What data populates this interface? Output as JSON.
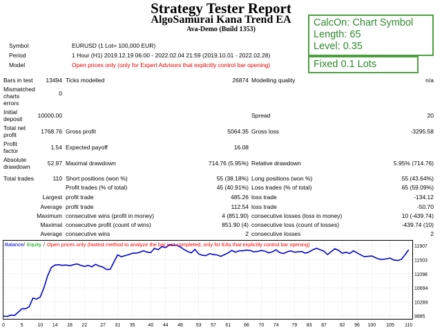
{
  "header": {
    "title": "Strategy Tester Report",
    "ea_name": "AlgoSamurai Kana Trend EA",
    "build": "Ava-Demo (Build 1353)"
  },
  "settings_box": {
    "calc_on": "CalcOn: Chart Symbol",
    "length": "Length: 65",
    "level": "Level: 0.35"
  },
  "lots_box": {
    "label": "Fixed 0.1 Lots"
  },
  "info": {
    "symbol_label": "Symbol",
    "symbol_value": "EURUSD (1 Lot= 100,000 EUR)",
    "period_label": "Period",
    "period_value": "1 Hour (H1) 2019.12.19 06:00 - 2022.02.04 21:59 (2019.10.01 - 2022.02.28)",
    "model_label": "Model",
    "model_value": "Open prices only (only for Expert Advisors that explicitly control bar opening)"
  },
  "stats": {
    "bars_label": "Bars in test",
    "bars_value": "13494",
    "ticks_label": "Ticks modelled",
    "ticks_value": "26874",
    "quality_label": "Modelling quality",
    "quality_value": "n/a",
    "mismatch_label_1": "Mismatched",
    "mismatch_label_2": "charts",
    "mismatch_label_3": "errors",
    "mismatch_value": "0",
    "deposit_label_1": "Initial",
    "deposit_label_2": "deposit",
    "deposit_value": "10000.00",
    "spread_label": "Spread",
    "spread_value": "20",
    "netprofit_label_1": "Total net",
    "netprofit_label_2": "profit",
    "netprofit_value": "1768.76",
    "grossprofit_label": "Gross profit",
    "grossprofit_value": "5064.35",
    "grossloss_label": "Gross loss",
    "grossloss_value": "-3295.58",
    "pf_label_1": "Profit",
    "pf_label_2": "factor",
    "pf_value": "1.54",
    "payoff_label": "Expected payoff",
    "payoff_value": "16.08",
    "absdd_label_1": "Absolute",
    "absdd_label_2": "drawdown",
    "absdd_value": "52.97",
    "maxdd_label": "Maximal drawdown",
    "maxdd_value": "714.76 (5.95%)",
    "reldd_label": "Relative drawdown",
    "reldd_value": "5.95% (714.76)",
    "trades_label": "Total trades",
    "trades_value": "110",
    "short_label": "Short positions (won %)",
    "short_value": "55 (38.18%)",
    "long_label": "Long positions (won %)",
    "long_value": "55 (43.64%)",
    "profit_trades_label": "Profit trades (% of total)",
    "profit_trades_value": "45 (40.91%)",
    "loss_trades_label": "Loss trades (% of total)",
    "loss_trades_value": "65 (59.09%)",
    "largest_label": "Largest",
    "largest_profit_label": "profit trade",
    "largest_profit_value": "485.26",
    "largest_loss_label": "loss trade",
    "largest_loss_value": "-134.12",
    "average_label": "Average",
    "average_profit_label": "profit trade",
    "average_profit_value": "112.54",
    "average_loss_label": "loss trade",
    "average_loss_value": "-50.70",
    "maximum_label": "Maximum",
    "max_wins_label": "consecutive wins (profit in money)",
    "max_wins_value": "4 (851.90)",
    "max_losses_label": "consecutive losses (loss in money)",
    "max_losses_value": "10 (-439.74)",
    "maximal_label": "Maximal",
    "maximal_profit_label": "consecutive profit (count of wins)",
    "maximal_profit_value": "851.90 (4)",
    "maximal_loss_label": "consecutive loss (count of losses)",
    "maximal_loss_value": "-439.74 (10)",
    "avg_label": "Average",
    "avg_wins_label": "consecutive wins",
    "avg_wins_value": "2",
    "avg_losses_label": "consecutive losses",
    "avg_losses_value": "2"
  },
  "chart_data": {
    "type": "line",
    "legend": {
      "balance": "Balance",
      "equity": "Equity",
      "note": "Open prices only (fastest method to analyze the bar just completed, only for EAs that explicitly control bar opening)"
    },
    "colors": {
      "balance": "#0000cc",
      "equity": "#00a000",
      "note": "#ff0000",
      "grid": "#c8c8c8"
    },
    "y_ticks": [
      9885,
      10289,
      10694,
      11098,
      11503,
      11907
    ],
    "x_ticks": [
      0,
      5,
      10,
      14,
      18,
      22,
      27,
      31,
      35,
      40,
      44,
      48,
      53,
      57,
      61,
      66,
      70,
      74,
      79,
      83,
      87,
      92,
      96,
      100,
      105,
      110
    ],
    "x_range": [
      0,
      111
    ],
    "y_range": [
      9800,
      12050
    ],
    "series": [
      {
        "name": "Balance",
        "x": [
          0,
          1,
          2,
          3,
          4,
          5,
          6,
          7,
          8,
          9,
          10,
          11,
          12,
          13,
          14,
          15,
          16,
          17,
          18,
          19,
          20,
          21,
          22,
          23,
          24,
          25,
          26,
          27,
          28,
          29,
          30,
          31,
          32,
          33,
          34,
          35,
          36,
          37,
          38,
          39,
          40,
          41,
          42,
          43,
          44,
          45,
          46,
          47,
          48,
          49,
          50,
          51,
          52,
          53,
          54,
          55,
          56,
          57,
          58,
          59,
          60,
          61,
          62,
          63,
          64,
          65,
          66,
          67,
          68,
          69,
          70,
          71,
          72,
          73,
          74,
          75,
          76,
          77,
          78,
          79,
          80,
          81,
          82,
          83,
          84,
          85,
          86,
          87,
          88,
          89,
          90,
          91,
          92,
          93,
          94,
          95,
          96,
          97,
          98,
          99,
          100,
          101,
          102,
          103,
          104,
          105,
          106,
          107,
          108,
          109,
          110
        ],
        "y": [
          9880,
          9870,
          9910,
          9900,
          9990,
          10090,
          10090,
          10150,
          10400,
          10370,
          10430,
          10700,
          11040,
          11280,
          11350,
          11360,
          11340,
          11350,
          11330,
          11360,
          11380,
          11340,
          11310,
          11340,
          11300,
          11370,
          11320,
          11290,
          11220,
          11230,
          11440,
          11640,
          11590,
          11620,
          11650,
          11690,
          11690,
          11720,
          11760,
          11720,
          11710,
          11830,
          11790,
          11880,
          11850,
          11930,
          11920,
          11920,
          11870,
          11800,
          11740,
          11700,
          11800,
          11670,
          11630,
          11620,
          11680,
          11650,
          11640,
          11600,
          11650,
          11700,
          11770,
          11720,
          11760,
          11760,
          11780,
          11770,
          11730,
          11740,
          11770,
          11750,
          11700,
          11730,
          11790,
          11710,
          11680,
          11730,
          11760,
          11720,
          11730,
          11740,
          11690,
          11730,
          11790,
          11830,
          11790,
          11750,
          11650,
          11740,
          11820,
          11770,
          11690,
          11720,
          11680,
          11760,
          11700,
          11640,
          11590,
          11600,
          11610,
          11560,
          11520,
          11510,
          11530,
          11550,
          11490,
          11480,
          11510,
          11640,
          11790
        ]
      }
    ]
  }
}
